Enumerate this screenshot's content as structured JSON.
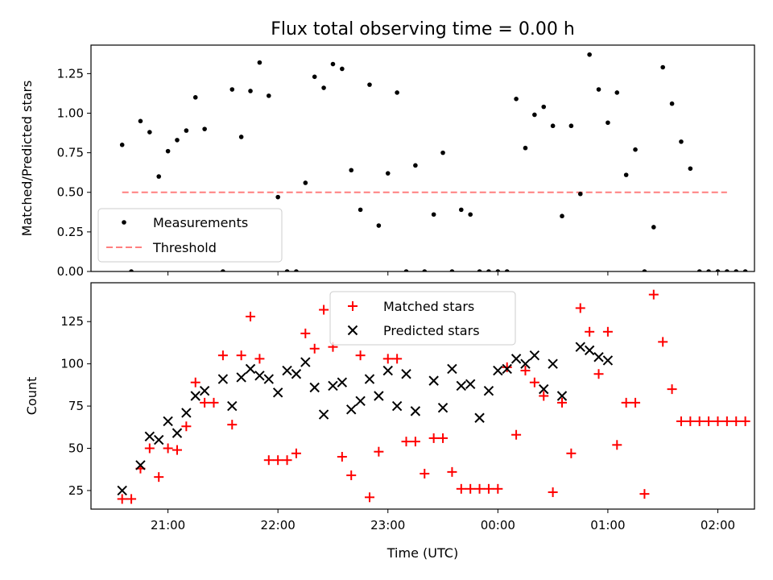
{
  "figure": {
    "title": "Flux total observing time = 0.00 h",
    "xlabel": "Time (UTC)"
  },
  "chart_data": [
    {
      "type": "scatter",
      "name": "top",
      "ylabel": "Matched/Predicted stars",
      "xlim": [
        "20:18",
        "02:20"
      ],
      "ylim": [
        0,
        1.43
      ],
      "yticks": [
        "0.00",
        "0.25",
        "0.50",
        "0.75",
        "1.00",
        "1.25"
      ],
      "legend": {
        "placement": "lower-left",
        "entries": [
          "Measurements",
          "Threshold"
        ]
      },
      "threshold": {
        "label": "Threshold",
        "value": 0.5,
        "x": [
          "20:35",
          "02:05"
        ],
        "color": "#ff7f7f"
      },
      "series": [
        {
          "name": "Measurements",
          "color": "#000000",
          "points": [
            [
              "20:35",
              0.8
            ],
            [
              "20:40",
              0.0
            ],
            [
              "20:45",
              0.95
            ],
            [
              "20:50",
              0.88
            ],
            [
              "20:55",
              0.6
            ],
            [
              "21:00",
              0.76
            ],
            [
              "21:05",
              0.83
            ],
            [
              "21:10",
              0.89
            ],
            [
              "21:15",
              1.1
            ],
            [
              "21:20",
              0.9
            ],
            [
              "21:30",
              0.0
            ],
            [
              "21:35",
              1.15
            ],
            [
              "21:40",
              0.85
            ],
            [
              "21:45",
              1.14
            ],
            [
              "21:50",
              1.32
            ],
            [
              "21:55",
              1.11
            ],
            [
              "22:00",
              0.47
            ],
            [
              "22:05",
              0.0
            ],
            [
              "22:10",
              0.0
            ],
            [
              "22:15",
              0.56
            ],
            [
              "22:20",
              1.23
            ],
            [
              "22:25",
              1.16
            ],
            [
              "22:30",
              1.31
            ],
            [
              "22:35",
              1.28
            ],
            [
              "22:40",
              0.64
            ],
            [
              "22:45",
              0.39
            ],
            [
              "22:50",
              1.18
            ],
            [
              "22:55",
              0.29
            ],
            [
              "23:00",
              0.62
            ],
            [
              "23:05",
              1.13
            ],
            [
              "23:10",
              0.0
            ],
            [
              "23:15",
              0.67
            ],
            [
              "23:20",
              0.0
            ],
            [
              "23:25",
              0.36
            ],
            [
              "23:30",
              0.75
            ],
            [
              "23:35",
              0.0
            ],
            [
              "23:40",
              0.39
            ],
            [
              "23:45",
              0.36
            ],
            [
              "23:50",
              0.0
            ],
            [
              "23:55",
              0.0
            ],
            [
              "00:00",
              0.0
            ],
            [
              "00:05",
              0.0
            ],
            [
              "00:10",
              1.09
            ],
            [
              "00:15",
              0.78
            ],
            [
              "00:20",
              0.99
            ],
            [
              "00:25",
              1.04
            ],
            [
              "00:30",
              0.92
            ],
            [
              "00:35",
              0.35
            ],
            [
              "00:40",
              0.92
            ],
            [
              "00:45",
              0.49
            ],
            [
              "00:50",
              1.37
            ],
            [
              "00:55",
              1.15
            ],
            [
              "01:00",
              0.94
            ],
            [
              "01:05",
              1.13
            ],
            [
              "01:10",
              0.61
            ],
            [
              "01:15",
              0.77
            ],
            [
              "01:20",
              0.0
            ],
            [
              "01:25",
              0.28
            ],
            [
              "01:30",
              1.29
            ],
            [
              "01:35",
              1.06
            ],
            [
              "01:40",
              0.82
            ],
            [
              "01:45",
              0.65
            ],
            [
              "01:50",
              0.0
            ],
            [
              "01:55",
              0.0
            ],
            [
              "02:00",
              0.0
            ],
            [
              "02:05",
              0.0
            ],
            [
              "02:10",
              0.0
            ],
            [
              "02:15",
              0.0
            ]
          ]
        }
      ]
    },
    {
      "type": "scatter",
      "name": "bottom",
      "ylabel": "Count",
      "xlim": [
        "20:18",
        "02:20"
      ],
      "ylim": [
        14,
        148
      ],
      "yticks": [
        "25",
        "50",
        "75",
        "100",
        "125"
      ],
      "xticks": [
        "21:00",
        "22:00",
        "23:00",
        "00:00",
        "01:00",
        "02:00"
      ],
      "legend": {
        "placement": "top-center",
        "entries": [
          "Matched stars",
          "Predicted stars"
        ]
      },
      "series": [
        {
          "name": "Matched stars",
          "marker": "+",
          "color": "#ff0000",
          "points": [
            [
              "20:35",
              20
            ],
            [
              "20:40",
              20
            ],
            [
              "20:45",
              38
            ],
            [
              "20:50",
              50
            ],
            [
              "20:55",
              33
            ],
            [
              "21:00",
              50
            ],
            [
              "21:05",
              49
            ],
            [
              "21:10",
              63
            ],
            [
              "21:15",
              89
            ],
            [
              "21:20",
              77
            ],
            [
              "21:25",
              77
            ],
            [
              "21:30",
              105
            ],
            [
              "21:35",
              64
            ],
            [
              "21:40",
              105
            ],
            [
              "21:45",
              128
            ],
            [
              "21:50",
              103
            ],
            [
              "21:55",
              43
            ],
            [
              "22:00",
              43
            ],
            [
              "22:05",
              43
            ],
            [
              "22:10",
              47
            ],
            [
              "22:15",
              118
            ],
            [
              "22:20",
              109
            ],
            [
              "22:25",
              132
            ],
            [
              "22:30",
              110
            ],
            [
              "22:35",
              45
            ],
            [
              "22:40",
              34
            ],
            [
              "22:45",
              105
            ],
            [
              "22:50",
              21
            ],
            [
              "22:55",
              48
            ],
            [
              "23:00",
              103
            ],
            [
              "23:05",
              103
            ],
            [
              "23:10",
              54
            ],
            [
              "23:15",
              54
            ],
            [
              "23:20",
              35
            ],
            [
              "23:25",
              56
            ],
            [
              "23:30",
              56
            ],
            [
              "23:35",
              36
            ],
            [
              "23:40",
              26
            ],
            [
              "23:45",
              26
            ],
            [
              "23:50",
              26
            ],
            [
              "23:55",
              26
            ],
            [
              "00:00",
              26
            ],
            [
              "00:05",
              98
            ],
            [
              "00:10",
              58
            ],
            [
              "00:15",
              96
            ],
            [
              "00:20",
              89
            ],
            [
              "00:25",
              81
            ],
            [
              "00:30",
              24
            ],
            [
              "00:35",
              77
            ],
            [
              "00:40",
              47
            ],
            [
              "00:45",
              133
            ],
            [
              "00:50",
              119
            ],
            [
              "00:55",
              94
            ],
            [
              "01:00",
              119
            ],
            [
              "01:05",
              52
            ],
            [
              "01:10",
              77
            ],
            [
              "01:15",
              77
            ],
            [
              "01:20",
              23
            ],
            [
              "01:25",
              141
            ],
            [
              "01:30",
              113
            ],
            [
              "01:35",
              85
            ],
            [
              "01:40",
              66
            ],
            [
              "01:45",
              66
            ],
            [
              "01:50",
              66
            ],
            [
              "01:55",
              66
            ],
            [
              "02:00",
              66
            ],
            [
              "02:05",
              66
            ],
            [
              "02:10",
              66
            ],
            [
              "02:15",
              66
            ]
          ]
        },
        {
          "name": "Predicted stars",
          "marker": "x",
          "color": "#000000",
          "points": [
            [
              "20:35",
              25
            ],
            [
              "20:45",
              40
            ],
            [
              "20:50",
              57
            ],
            [
              "20:55",
              55
            ],
            [
              "21:00",
              66
            ],
            [
              "21:05",
              59
            ],
            [
              "21:10",
              71
            ],
            [
              "21:15",
              81
            ],
            [
              "21:20",
              84
            ],
            [
              "21:30",
              91
            ],
            [
              "21:35",
              75
            ],
            [
              "21:40",
              92
            ],
            [
              "21:45",
              97
            ],
            [
              "21:50",
              93
            ],
            [
              "21:55",
              91
            ],
            [
              "22:00",
              83
            ],
            [
              "22:05",
              96
            ],
            [
              "22:10",
              94
            ],
            [
              "22:15",
              101
            ],
            [
              "22:20",
              86
            ],
            [
              "22:25",
              70
            ],
            [
              "22:30",
              87
            ],
            [
              "22:35",
              89
            ],
            [
              "22:40",
              73
            ],
            [
              "22:45",
              78
            ],
            [
              "22:50",
              91
            ],
            [
              "22:55",
              81
            ],
            [
              "23:00",
              96
            ],
            [
              "23:05",
              75
            ],
            [
              "23:10",
              94
            ],
            [
              "23:15",
              72
            ],
            [
              "23:25",
              90
            ],
            [
              "23:30",
              74
            ],
            [
              "23:35",
              97
            ],
            [
              "23:40",
              87
            ],
            [
              "23:45",
              88
            ],
            [
              "23:50",
              68
            ],
            [
              "23:55",
              84
            ],
            [
              "00:00",
              96
            ],
            [
              "00:05",
              97
            ],
            [
              "00:10",
              103
            ],
            [
              "00:15",
              100
            ],
            [
              "00:20",
              105
            ],
            [
              "00:25",
              85
            ],
            [
              "00:30",
              100
            ],
            [
              "00:35",
              81
            ],
            [
              "00:45",
              110
            ],
            [
              "00:50",
              108
            ],
            [
              "00:55",
              104
            ],
            [
              "01:00",
              102
            ]
          ]
        }
      ]
    }
  ]
}
